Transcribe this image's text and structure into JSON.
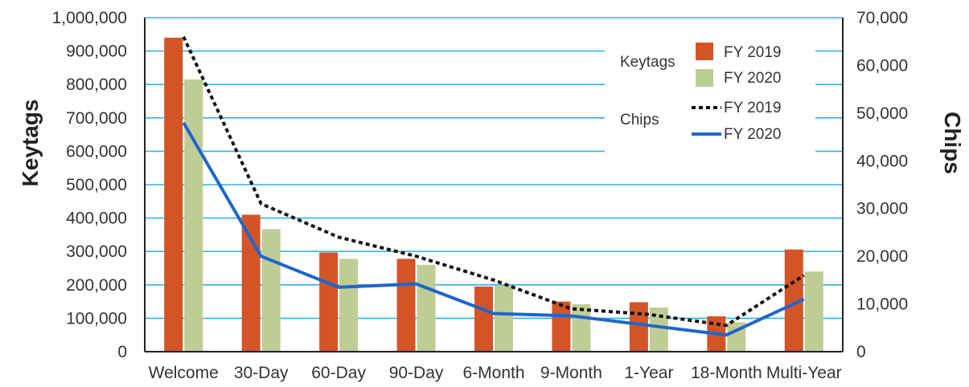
{
  "chart_data": {
    "type": "bar",
    "categories": [
      "Welcome",
      "30-Day",
      "60-Day",
      "90-Day",
      "6-Month",
      "9-Month",
      "1-Year",
      "18-Month",
      "Multi-Year"
    ],
    "ylabel": "Keytags",
    "y2label": "Chips",
    "ylim": [
      0,
      1000000
    ],
    "y2lim": [
      0,
      70000
    ],
    "yticks": [
      "0",
      "100,000",
      "200,000",
      "300,000",
      "400,000",
      "500,000",
      "600,000",
      "700,000",
      "800,000",
      "900,000",
      "1,000,000"
    ],
    "y2ticks": [
      "0",
      "10,000",
      "20,000",
      "30,000",
      "40,000",
      "50,000",
      "60,000",
      "70,000"
    ],
    "grid": true,
    "legend": {
      "placement": "top-right",
      "keytags_label": "Keytags",
      "chips_label": "Chips"
    },
    "bar_series": [
      {
        "name": "FY 2019",
        "color": "#d35427",
        "values": [
          940000,
          410000,
          297000,
          278000,
          195000,
          150000,
          148000,
          106000,
          306000
        ]
      },
      {
        "name": "FY 2020",
        "color": "#bfcc96",
        "values": [
          815000,
          367000,
          278000,
          260000,
          198000,
          142000,
          132000,
          88000,
          240000
        ]
      }
    ],
    "line_series": [
      {
        "name": "FY 2019",
        "style": "dotted",
        "color": "#111111",
        "values": [
          66000,
          31000,
          24000,
          20000,
          15000,
          9000,
          7800,
          5500,
          16000
        ]
      },
      {
        "name": "FY 2020",
        "style": "solid",
        "color": "#1f66c9",
        "values": [
          48000,
          20000,
          13500,
          14200,
          8000,
          7500,
          5500,
          3500,
          11000
        ]
      }
    ],
    "gridline_color": "#34b4e6"
  }
}
